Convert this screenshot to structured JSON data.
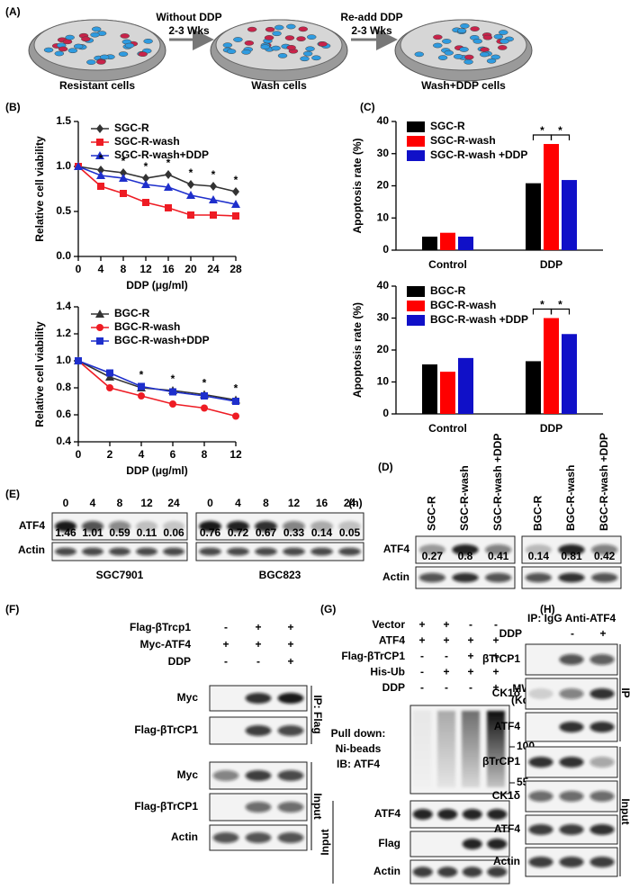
{
  "chart_data": [
    {
      "type": "line",
      "ylabel": "Relative cell viability",
      "xlabel": "DDP (μg/ml)",
      "x": [
        0,
        4,
        8,
        12,
        16,
        20,
        24,
        28
      ],
      "xlim": [
        0,
        28
      ],
      "xticks": [
        0,
        4,
        8,
        12,
        16,
        20,
        24,
        28
      ],
      "ylim": [
        0,
        1.5
      ],
      "yticks": [
        {
          "value": 0,
          "label": "0.0"
        },
        {
          "value": 0.5,
          "label": "0.5"
        },
        {
          "value": 1,
          "label": "1.0"
        },
        {
          "value": 1.5,
          "label": "1.5"
        }
      ],
      "legend": "upper left",
      "series": [
        {
          "name": "SGC-R",
          "color": "#333333",
          "marker": "diamond",
          "values": [
            1.0,
            0.96,
            0.93,
            0.87,
            0.91,
            0.8,
            0.78,
            0.72
          ]
        },
        {
          "name": "SGC-R-wash",
          "color": "#ee1c24",
          "marker": "square",
          "values": [
            1.0,
            0.78,
            0.7,
            0.6,
            0.54,
            0.46,
            0.46,
            0.45
          ]
        },
        {
          "name": "SGC-R-wash+DDP",
          "color": "#1e2fcc",
          "marker": "triangle",
          "values": [
            1.0,
            0.9,
            0.87,
            0.8,
            0.77,
            0.68,
            0.63,
            0.58
          ]
        }
      ],
      "annotations": [
        {
          "x": 4,
          "label": "*"
        },
        {
          "x": 8,
          "label": "*"
        },
        {
          "x": 12,
          "label": "*"
        },
        {
          "x": 16,
          "label": "*"
        },
        {
          "x": 20,
          "label": "*"
        },
        {
          "x": 24,
          "label": "*"
        },
        {
          "x": 28,
          "label": "*"
        }
      ]
    },
    {
      "type": "line",
      "ylabel": "Relative cell viability",
      "xlabel": "DDP (μg/ml)",
      "categories": [
        0,
        2,
        4,
        6,
        8,
        12
      ],
      "ylim": [
        0.4,
        1.4
      ],
      "yticks": [
        0.4,
        0.6,
        0.8,
        {
          "value": 1,
          "label": "1.0"
        },
        1.2,
        1.4
      ],
      "legend": "upper left",
      "series": [
        {
          "name": "BGC-R",
          "color": "#333333",
          "marker": "triangle",
          "values": [
            1.0,
            0.88,
            0.8,
            0.78,
            0.75,
            0.71
          ]
        },
        {
          "name": "BGC-R-wash",
          "color": "#ee1c24",
          "marker": "circle",
          "values": [
            1.0,
            0.8,
            0.74,
            0.68,
            0.65,
            0.59
          ]
        },
        {
          "name": "BGC-R-wash+DDP",
          "color": "#1e2fcc",
          "marker": "square",
          "values": [
            1.0,
            0.91,
            0.81,
            0.77,
            0.74,
            0.7
          ]
        }
      ],
      "annotations": [
        {
          "x": 4,
          "label": "*"
        },
        {
          "x": 6,
          "label": "*"
        },
        {
          "x": 8,
          "label": "*"
        },
        {
          "x": 12,
          "label": "*"
        }
      ]
    },
    {
      "type": "bar",
      "ylabel": "Apoptosis rate (%)",
      "categories": [
        "Control",
        "DDP"
      ],
      "ylim": [
        0,
        40
      ],
      "yticks": [
        0,
        10,
        20,
        30,
        40
      ],
      "legend": "upper left",
      "series": [
        {
          "name": "SGC-R",
          "color": "#000000",
          "values": [
            4.2,
            20.8
          ]
        },
        {
          "name": "SGC-R-wash",
          "color": "#ff0000",
          "values": [
            5.4,
            33
          ]
        },
        {
          "name": "SGC-R-wash +DDP",
          "color": "#1010c8",
          "values": [
            4.2,
            21.8
          ]
        }
      ],
      "brackets": [
        {
          "label": "*"
        },
        {
          "label": "*"
        }
      ]
    },
    {
      "type": "bar",
      "ylabel": "Apoptosis rate (%)",
      "categories": [
        "Control",
        "DDP"
      ],
      "ylim": [
        0,
        40
      ],
      "yticks": [
        0,
        10,
        20,
        30,
        40
      ],
      "legend": "upper left",
      "series": [
        {
          "name": "BGC-R",
          "color": "#000000",
          "values": [
            15.5,
            16.5
          ]
        },
        {
          "name": "BGC-R-wash",
          "color": "#ff0000",
          "values": [
            13.2,
            30
          ]
        },
        {
          "name": "BGC-R-wash +DDP",
          "color": "#1010c8",
          "values": [
            17.5,
            25
          ]
        }
      ],
      "brackets": [
        {
          "label": "*"
        },
        {
          "label": "*"
        }
      ]
    }
  ],
  "panel_a": {
    "label": "(A)",
    "steps": [
      "Resistant cells",
      "Wash cells",
      "Wash+DDP cells"
    ],
    "arrows": [
      {
        "line1": "Without DDP",
        "line2": "2-3 Wks"
      },
      {
        "line1": "Re-add DDP",
        "line2": "2-3 Wks"
      }
    ]
  },
  "panel_b": {
    "label": "(B)"
  },
  "panel_c": {
    "label": "(C)"
  },
  "panel_e": {
    "label": "(E)",
    "unit": "(h)",
    "rows": [
      "ATF4",
      "Actin"
    ],
    "blots": [
      {
        "name": "SGC7901",
        "lanes": [
          0,
          4,
          8,
          12,
          24
        ],
        "quant": [
          1.46,
          1.01,
          0.59,
          0.11,
          0.06
        ]
      },
      {
        "name": "BGC823",
        "lanes": [
          0,
          4,
          8,
          12,
          16,
          24
        ],
        "quant": [
          0.76,
          0.72,
          0.67,
          0.33,
          0.14,
          0.05
        ]
      }
    ]
  },
  "panel_d": {
    "label": "(D)",
    "rows": [
      "ATF4",
      "Actin"
    ],
    "blots": [
      {
        "lanes": [
          "SGC-R",
          "SGC-R-wash",
          "SGC-R-wash +DDP"
        ],
        "quant": [
          0.27,
          0.8,
          0.41
        ]
      },
      {
        "lanes": [
          "BGC-R",
          "BGC-R-wash",
          "BGC-R-wash +DDP"
        ],
        "quant": [
          0.14,
          0.81,
          0.42
        ]
      }
    ]
  },
  "panel_f": {
    "label": "(F)",
    "conditions": [
      {
        "name": "Flag-βTrcp1",
        "signs": [
          "-",
          "+",
          "+"
        ]
      },
      {
        "name": "Myc-ATF4",
        "signs": [
          "+",
          "+",
          "+"
        ]
      },
      {
        "name": "DDP",
        "signs": [
          "-",
          "-",
          "+"
        ]
      }
    ],
    "ip_blots": [
      "Myc",
      "Flag-βTrCP1"
    ],
    "ip_label": "IP: Flag",
    "input_blots": [
      "Myc",
      "Flag-βTrCP1",
      "Actin"
    ],
    "input_label": "Input"
  },
  "panel_g": {
    "label": "(G)",
    "conditions": [
      {
        "name": "Vector",
        "signs": [
          "+",
          "+",
          "-",
          "-"
        ]
      },
      {
        "name": "ATF4",
        "signs": [
          "+",
          "+",
          "+",
          "+"
        ]
      },
      {
        "name": "Flag-βTrCP1",
        "signs": [
          "-",
          "-",
          "+",
          "+"
        ]
      },
      {
        "name": "His-Ub",
        "signs": [
          "-",
          "+",
          "+",
          "+"
        ]
      },
      {
        "name": "DDP",
        "signs": [
          "-",
          "-",
          "-",
          "+"
        ]
      }
    ],
    "mw_label": "MW",
    "mw_unit": "(Kd)",
    "pulldown": [
      "Pull down:",
      "Ni-beads",
      "IB: ATF4"
    ],
    "markers": [
      100,
      55
    ],
    "input_blots": [
      "ATF4",
      "Flag",
      "Actin"
    ],
    "input_label": "Input"
  },
  "panel_h": {
    "label": "(H)",
    "ip_header": "IP: IgG",
    "ip_header2": "Anti-ATF4",
    "ddp": {
      "name": "DDP",
      "signs": [
        "-",
        "+"
      ]
    },
    "ip_blots": [
      "βTrCP1",
      "CK1δ",
      "ATF4"
    ],
    "ip_label": "IP",
    "input_blots": [
      "βTrCP1",
      "CK1δ",
      "ATF4",
      "Actin"
    ],
    "input_label": "Input"
  }
}
